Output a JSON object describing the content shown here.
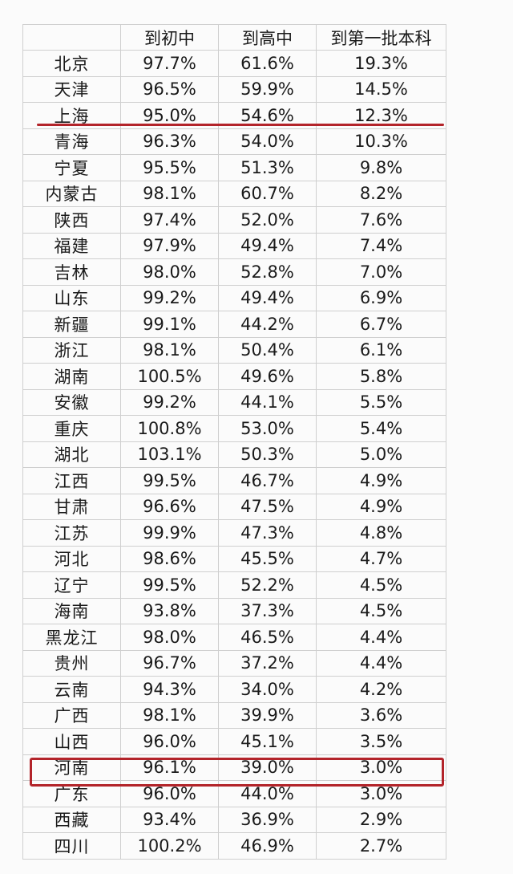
{
  "headers": [
    "",
    "到初中",
    "到高中",
    "到第一批本科"
  ],
  "rows": [
    {
      "province": "北京",
      "junior": "97.7%",
      "senior": "61.6%",
      "tier1": "19.3%"
    },
    {
      "province": "天津",
      "junior": "96.5%",
      "senior": "59.9%",
      "tier1": "14.5%"
    },
    {
      "province": "上海",
      "junior": "95.0%",
      "senior": "54.6%",
      "tier1": "12.3%"
    },
    {
      "province": "青海",
      "junior": "96.3%",
      "senior": "54.0%",
      "tier1": "10.3%"
    },
    {
      "province": "宁夏",
      "junior": "95.5%",
      "senior": "51.3%",
      "tier1": "9.8%"
    },
    {
      "province": "内蒙古",
      "junior": "98.1%",
      "senior": "60.7%",
      "tier1": "8.2%"
    },
    {
      "province": "陕西",
      "junior": "97.4%",
      "senior": "52.0%",
      "tier1": "7.6%"
    },
    {
      "province": "福建",
      "junior": "97.9%",
      "senior": "49.4%",
      "tier1": "7.4%"
    },
    {
      "province": "吉林",
      "junior": "98.0%",
      "senior": "52.8%",
      "tier1": "7.0%"
    },
    {
      "province": "山东",
      "junior": "99.2%",
      "senior": "49.4%",
      "tier1": "6.9%"
    },
    {
      "province": "新疆",
      "junior": "99.1%",
      "senior": "44.2%",
      "tier1": "6.7%"
    },
    {
      "province": "浙江",
      "junior": "98.1%",
      "senior": "50.4%",
      "tier1": "6.1%"
    },
    {
      "province": "湖南",
      "junior": "100.5%",
      "senior": "49.6%",
      "tier1": "5.8%"
    },
    {
      "province": "安徽",
      "junior": "99.2%",
      "senior": "44.1%",
      "tier1": "5.5%"
    },
    {
      "province": "重庆",
      "junior": "100.8%",
      "senior": "53.0%",
      "tier1": "5.4%"
    },
    {
      "province": "湖北",
      "junior": "103.1%",
      "senior": "50.3%",
      "tier1": "5.0%"
    },
    {
      "province": "江西",
      "junior": "99.5%",
      "senior": "46.7%",
      "tier1": "4.9%"
    },
    {
      "province": "甘肃",
      "junior": "96.6%",
      "senior": "47.5%",
      "tier1": "4.9%"
    },
    {
      "province": "江苏",
      "junior": "99.9%",
      "senior": "47.3%",
      "tier1": "4.8%"
    },
    {
      "province": "河北",
      "junior": "98.6%",
      "senior": "45.5%",
      "tier1": "4.7%"
    },
    {
      "province": "辽宁",
      "junior": "99.5%",
      "senior": "52.2%",
      "tier1": "4.5%"
    },
    {
      "province": "海南",
      "junior": "93.8%",
      "senior": "37.3%",
      "tier1": "4.5%"
    },
    {
      "province": "黑龙江",
      "junior": "98.0%",
      "senior": "46.5%",
      "tier1": "4.4%"
    },
    {
      "province": "贵州",
      "junior": "96.7%",
      "senior": "37.2%",
      "tier1": "4.4%"
    },
    {
      "province": "云南",
      "junior": "94.3%",
      "senior": "34.0%",
      "tier1": "4.2%"
    },
    {
      "province": "广西",
      "junior": "98.1%",
      "senior": "39.9%",
      "tier1": "3.6%"
    },
    {
      "province": "山西",
      "junior": "96.0%",
      "senior": "45.1%",
      "tier1": "3.5%"
    },
    {
      "province": "河南",
      "junior": "96.1%",
      "senior": "39.0%",
      "tier1": "3.0%"
    },
    {
      "province": "广东",
      "junior": "96.0%",
      "senior": "44.0%",
      "tier1": "3.0%"
    },
    {
      "province": "西藏",
      "junior": "93.4%",
      "senior": "36.9%",
      "tier1": "2.9%"
    },
    {
      "province": "四川",
      "junior": "100.2%",
      "senior": "46.9%",
      "tier1": "2.7%"
    }
  ],
  "annotation_color": "#b3242a"
}
